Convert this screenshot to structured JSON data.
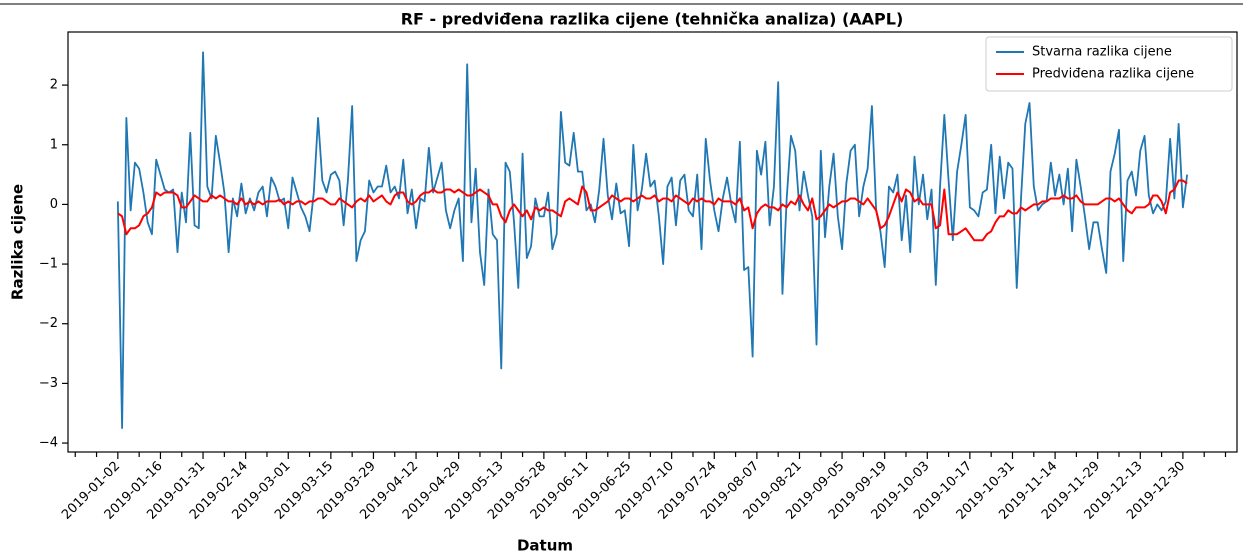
{
  "chart_data": {
    "type": "line",
    "title": "RF - predviđena razlika cijene (tehnička analiza) (AAPL)",
    "xlabel": "Datum",
    "ylabel": "Razlika cijene",
    "categories": [
      "2019-01-02",
      null,
      null,
      null,
      null,
      null,
      null,
      null,
      null,
      null,
      "2019-01-16",
      null,
      null,
      null,
      null,
      null,
      null,
      null,
      null,
      null,
      "2019-01-31",
      null,
      null,
      null,
      null,
      null,
      null,
      null,
      null,
      null,
      "2019-02-14",
      null,
      null,
      null,
      null,
      null,
      null,
      null,
      null,
      null,
      "2019-03-01",
      null,
      null,
      null,
      null,
      null,
      null,
      null,
      null,
      null,
      "2019-03-15",
      null,
      null,
      null,
      null,
      null,
      null,
      null,
      null,
      null,
      "2019-03-29",
      null,
      null,
      null,
      null,
      null,
      null,
      null,
      null,
      null,
      "2019-04-12",
      null,
      null,
      null,
      null,
      null,
      null,
      null,
      null,
      null,
      "2019-04-29",
      null,
      null,
      null,
      null,
      null,
      null,
      null,
      null,
      null,
      "2019-05-13",
      null,
      null,
      null,
      null,
      null,
      null,
      null,
      null,
      null,
      "2019-05-28",
      null,
      null,
      null,
      null,
      null,
      null,
      null,
      null,
      null,
      "2019-06-11",
      null,
      null,
      null,
      null,
      null,
      null,
      null,
      null,
      null,
      "2019-06-25",
      null,
      null,
      null,
      null,
      null,
      null,
      null,
      null,
      null,
      "2019-07-10",
      null,
      null,
      null,
      null,
      null,
      null,
      null,
      null,
      null,
      "2019-07-24",
      null,
      null,
      null,
      null,
      null,
      null,
      null,
      null,
      null,
      "2019-08-07",
      null,
      null,
      null,
      null,
      null,
      null,
      null,
      null,
      null,
      "2019-08-21",
      null,
      null,
      null,
      null,
      null,
      null,
      null,
      null,
      null,
      "2019-09-05",
      null,
      null,
      null,
      null,
      null,
      null,
      null,
      null,
      null,
      "2019-09-19",
      null,
      null,
      null,
      null,
      null,
      null,
      null,
      null,
      null,
      "2019-10-03",
      null,
      null,
      null,
      null,
      null,
      null,
      null,
      null,
      null,
      "2019-10-17",
      null,
      null,
      null,
      null,
      null,
      null,
      null,
      null,
      null,
      "2019-10-31",
      null,
      null,
      null,
      null,
      null,
      null,
      null,
      null,
      null,
      "2019-11-14",
      null,
      null,
      null,
      null,
      null,
      null,
      null,
      null,
      null,
      "2019-11-29",
      null,
      null,
      null,
      null,
      null,
      null,
      null,
      null,
      null,
      "2019-12-13",
      null,
      null,
      null,
      null,
      null,
      null,
      null,
      null,
      null,
      "2019-12-30",
      null
    ],
    "series": [
      {
        "name": "Stvarna razlika cijene",
        "color": "#1f77b4",
        "values": [
          0.05,
          -3.75,
          1.45,
          -0.1,
          0.7,
          0.6,
          0.2,
          -0.3,
          -0.5,
          0.75,
          0.5,
          0.25,
          0.2,
          0.25,
          -0.8,
          0.2,
          -0.3,
          1.2,
          -0.35,
          -0.4,
          2.55,
          0.3,
          0.1,
          1.15,
          0.7,
          0.2,
          -0.8,
          0.1,
          -0.2,
          0.35,
          -0.15,
          0.1,
          -0.1,
          0.2,
          0.3,
          -0.2,
          0.45,
          0.3,
          0.05,
          0.1,
          -0.4,
          0.45,
          0.2,
          -0.05,
          -0.2,
          -0.45,
          0.2,
          1.45,
          0.4,
          0.2,
          0.5,
          0.55,
          0.4,
          -0.35,
          0.4,
          1.65,
          -0.95,
          -0.6,
          -0.45,
          0.4,
          0.2,
          0.3,
          0.3,
          0.65,
          0.2,
          0.3,
          0.1,
          0.75,
          -0.15,
          0.25,
          -0.4,
          0.1,
          0.05,
          0.95,
          0.2,
          0.45,
          0.7,
          -0.1,
          -0.4,
          -0.1,
          0.1,
          -0.95,
          2.35,
          -0.3,
          0.6,
          -0.8,
          -1.35,
          0.25,
          -0.5,
          -0.6,
          -2.75,
          0.7,
          0.55,
          -0.3,
          -1.4,
          0.85,
          -0.9,
          -0.7,
          0.1,
          -0.2,
          -0.2,
          0.2,
          -0.75,
          -0.5,
          1.55,
          0.7,
          0.65,
          1.2,
          0.55,
          0.55,
          -0.1,
          0.0,
          -0.3,
          0.25,
          1.1,
          0.15,
          -0.25,
          0.35,
          -0.15,
          -0.1,
          -0.7,
          1.0,
          -0.1,
          0.25,
          0.85,
          0.3,
          0.4,
          -0.2,
          -1.0,
          0.3,
          0.45,
          -0.35,
          0.4,
          0.5,
          -0.1,
          -0.2,
          0.5,
          -0.75,
          1.1,
          0.4,
          -0.1,
          -0.45,
          0.1,
          0.45,
          0.0,
          -0.3,
          1.05,
          -1.1,
          -1.05,
          -2.55,
          0.9,
          0.5,
          1.05,
          -0.35,
          0.3,
          2.05,
          -1.5,
          0.1,
          1.15,
          0.9,
          -0.1,
          0.55,
          0.15,
          -0.2,
          -2.35,
          0.9,
          -0.55,
          0.3,
          0.85,
          -0.2,
          -0.75,
          0.35,
          0.9,
          1.0,
          -0.2,
          0.3,
          0.6,
          1.65,
          -0.1,
          -0.45,
          -1.05,
          0.3,
          0.2,
          0.5,
          -0.6,
          0.15,
          -0.8,
          0.8,
          0.0,
          0.5,
          -0.25,
          0.25,
          -1.35,
          0.3,
          1.5,
          0.4,
          -0.6,
          0.55,
          1.0,
          1.5,
          -0.05,
          -0.1,
          -0.2,
          0.2,
          0.25,
          1.0,
          -0.15,
          0.8,
          0.1,
          0.7,
          0.6,
          -1.4,
          0.1,
          1.35,
          1.7,
          0.3,
          -0.1,
          0.0,
          0.05,
          0.7,
          0.15,
          0.5,
          0.0,
          0.6,
          -0.45,
          0.75,
          0.3,
          -0.2,
          -0.75,
          -0.3,
          -0.3,
          -0.75,
          -1.15,
          0.55,
          0.85,
          1.25,
          -0.95,
          0.4,
          0.55,
          0.15,
          0.9,
          1.15,
          0.15,
          -0.15,
          0.0,
          -0.1,
          0.05,
          1.1,
          0.1,
          1.35,
          -0.05,
          0.5
        ]
      },
      {
        "name": "Predviđena razlika cijene",
        "color": "#ff0000",
        "values": [
          -0.15,
          -0.2,
          -0.5,
          -0.4,
          -0.4,
          -0.35,
          -0.2,
          -0.15,
          -0.05,
          0.2,
          0.15,
          0.2,
          0.2,
          0.2,
          0.15,
          -0.05,
          -0.05,
          0.05,
          0.15,
          0.1,
          0.05,
          0.05,
          0.15,
          0.1,
          0.15,
          0.1,
          0.05,
          0.05,
          0.0,
          0.1,
          0.0,
          0.05,
          0.0,
          0.05,
          0.0,
          0.05,
          0.05,
          0.05,
          0.08,
          0.0,
          0.05,
          0.0,
          0.05,
          0.05,
          0.0,
          0.05,
          0.05,
          0.1,
          0.1,
          0.05,
          0.0,
          0.0,
          0.1,
          0.05,
          0.0,
          -0.05,
          0.05,
          0.1,
          0.05,
          0.15,
          0.05,
          0.1,
          0.15,
          0.05,
          0.0,
          0.15,
          0.2,
          0.2,
          0.05,
          0.0,
          0.05,
          0.15,
          0.2,
          0.2,
          0.25,
          0.2,
          0.2,
          0.25,
          0.25,
          0.2,
          0.25,
          0.2,
          0.15,
          0.15,
          0.2,
          0.25,
          0.2,
          0.15,
          0.0,
          0.0,
          -0.2,
          -0.3,
          -0.1,
          0.0,
          -0.1,
          -0.2,
          -0.1,
          -0.25,
          -0.05,
          -0.1,
          -0.05,
          -0.1,
          -0.1,
          -0.15,
          -0.2,
          0.05,
          0.1,
          0.05,
          0.0,
          0.3,
          0.2,
          -0.1,
          -0.1,
          -0.05,
          0.0,
          0.05,
          0.15,
          0.1,
          0.05,
          0.1,
          0.1,
          0.05,
          0.1,
          0.15,
          0.1,
          0.1,
          0.15,
          0.05,
          0.1,
          0.1,
          0.05,
          0.15,
          0.1,
          0.05,
          0.0,
          0.1,
          0.05,
          0.1,
          0.05,
          0.05,
          0.0,
          0.1,
          0.05,
          0.05,
          0.05,
          0.0,
          0.1,
          -0.1,
          -0.05,
          -0.4,
          -0.15,
          -0.05,
          0.0,
          -0.05,
          -0.05,
          -0.1,
          0.0,
          -0.05,
          0.05,
          0.0,
          0.15,
          0.0,
          -0.1,
          0.1,
          -0.25,
          -0.2,
          -0.1,
          0.0,
          -0.05,
          0.0,
          0.05,
          0.05,
          0.1,
          0.1,
          0.05,
          0.0,
          0.1,
          0.0,
          -0.1,
          -0.4,
          -0.35,
          -0.2,
          0.0,
          0.2,
          0.05,
          0.25,
          0.2,
          0.05,
          0.1,
          0.0,
          0.0,
          0.0,
          -0.4,
          -0.35,
          0.25,
          -0.5,
          -0.5,
          -0.5,
          -0.45,
          -0.4,
          -0.5,
          -0.6,
          -0.6,
          -0.6,
          -0.5,
          -0.45,
          -0.3,
          -0.2,
          -0.2,
          -0.1,
          -0.15,
          -0.15,
          -0.05,
          -0.1,
          -0.05,
          0.0,
          0.0,
          0.05,
          0.05,
          0.1,
          0.1,
          0.1,
          0.15,
          0.1,
          0.1,
          0.15,
          0.05,
          0.0,
          0.0,
          0.0,
          0.0,
          0.05,
          0.1,
          0.1,
          0.05,
          0.1,
          0.0,
          -0.1,
          -0.15,
          -0.05,
          -0.05,
          -0.05,
          0.0,
          0.15,
          0.15,
          0.05,
          -0.15,
          0.2,
          0.25,
          0.4,
          0.4,
          0.35
        ]
      }
    ],
    "xlim": [
      -11.7,
      262.7
    ],
    "xticks": [
      -10,
      -5,
      0,
      5,
      10,
      15,
      20,
      25,
      30,
      35,
      40,
      45,
      50,
      55,
      60,
      65,
      70,
      75,
      80,
      85,
      90,
      95,
      100,
      105,
      110,
      115,
      120,
      125,
      130,
      135,
      140,
      145,
      150,
      155,
      160,
      165,
      170,
      175,
      180,
      185,
      190,
      195,
      200,
      205,
      210,
      215,
      220,
      225,
      230,
      235,
      240,
      245,
      250,
      255,
      260
    ],
    "ylim": [
      -4.15,
      2.89
    ],
    "yticks": [
      {
        "value": -4,
        "label": "−4"
      },
      {
        "value": -3,
        "label": "−3"
      },
      {
        "value": -2,
        "label": "−2"
      },
      {
        "value": -1,
        "label": "−1"
      },
      0,
      1,
      2
    ],
    "legend": "upper right"
  }
}
